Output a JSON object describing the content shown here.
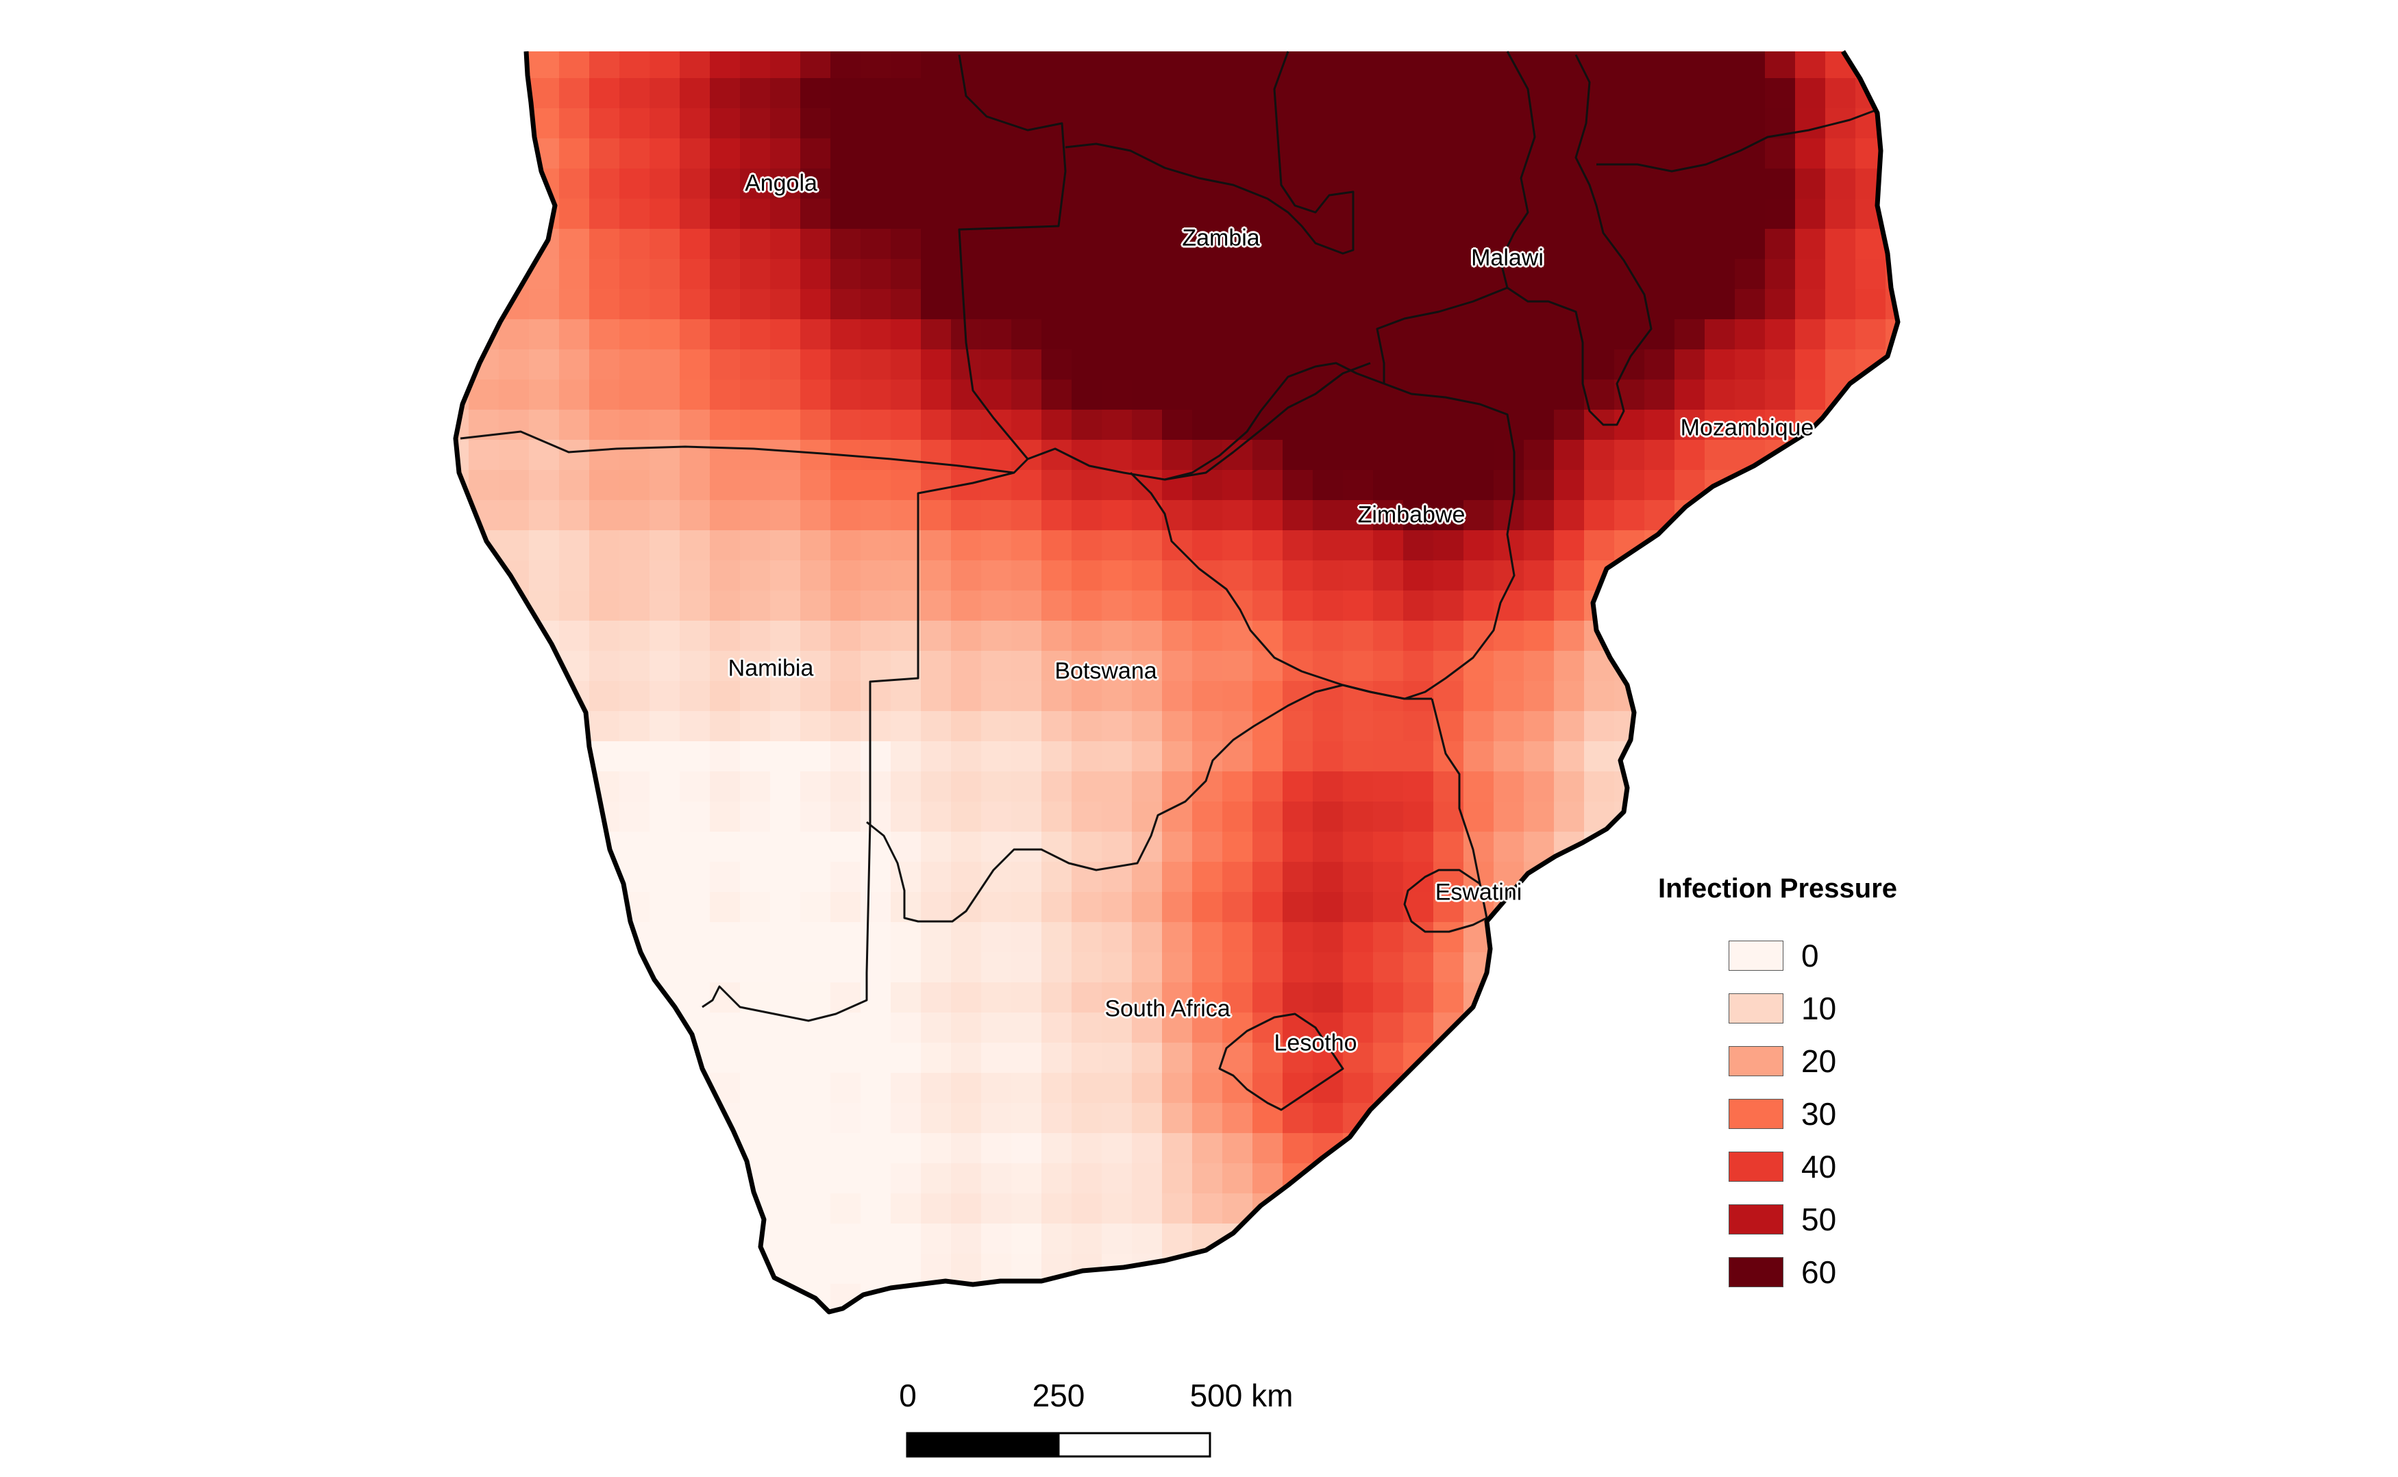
{
  "map": {
    "labels": {
      "angola": "Angola",
      "zambia": "Zambia",
      "malawi": "Malawi",
      "mozambique": "Mozambique",
      "zimbabwe": "Zimbabwe",
      "namibia": "Namibia",
      "botswana": "Botswana",
      "eswatini": "Eswatini",
      "south_africa": "South Africa",
      "lesotho": "Lesotho"
    }
  },
  "legend": {
    "title": "Infection Pressure",
    "items": [
      {
        "label": "0",
        "color": "#fff5f0"
      },
      {
        "label": "10",
        "color": "#fdd7c6"
      },
      {
        "label": "20",
        "color": "#fca486"
      },
      {
        "label": "30",
        "color": "#fb6f4d"
      },
      {
        "label": "40",
        "color": "#e83a2e"
      },
      {
        "label": "50",
        "color": "#bb1419"
      },
      {
        "label": "60",
        "color": "#67000d"
      }
    ]
  },
  "scale_bar": {
    "tick_labels": [
      "0",
      "250",
      "500 km"
    ]
  }
}
